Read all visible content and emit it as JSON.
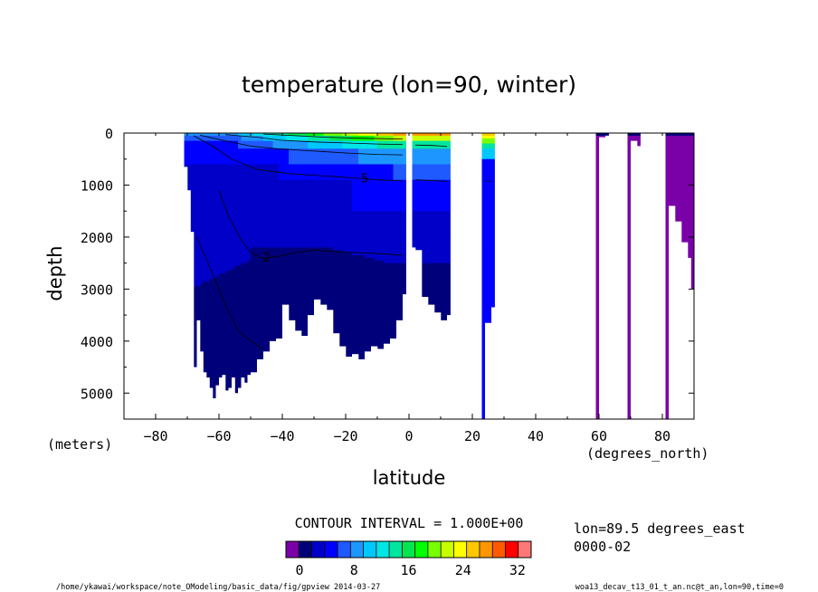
{
  "chart_data": {
    "type": "heatmap",
    "title": "temperature (lon=90, winter)",
    "xlabel": "latitude",
    "ylabel": "depth",
    "x_unit": "(degrees_north)",
    "y_unit": "(meters)",
    "xlim": [
      -90,
      90
    ],
    "ylim": [
      5500,
      0
    ],
    "x_ticks": [
      -80,
      -60,
      -40,
      -20,
      0,
      20,
      40,
      60,
      80
    ],
    "y_ticks": [
      0,
      1000,
      2000,
      3000,
      4000,
      5000
    ],
    "y_reversed": true,
    "contour_interval_text": "CONTOUR INTERVAL = 1.000E+00",
    "contour_labels": [
      {
        "text": "5",
        "x": -14,
        "y": 880
      },
      {
        "text": "2",
        "x": -45,
        "y": 2400
      }
    ],
    "colorbar": {
      "min": -2,
      "max": 32,
      "step": 2,
      "tick_labels": [
        "0",
        "8",
        "16",
        "24",
        "32"
      ],
      "tick_values": [
        0,
        8,
        16,
        24,
        32
      ],
      "colors": [
        "#7a00a8",
        "#00007a",
        "#0000c8",
        "#0000ff",
        "#1e5aff",
        "#1e96ff",
        "#00c8ff",
        "#00e6e6",
        "#00e6a0",
        "#00e650",
        "#00ff00",
        "#78ff00",
        "#c8ff00",
        "#ffff00",
        "#ffc800",
        "#ff9600",
        "#ff5a00",
        "#ff0000",
        "#ff7878"
      ]
    },
    "profiles": [
      {
        "lat": -71,
        "bottom": 650
      },
      {
        "lat": -70,
        "bottom": 1100
      },
      {
        "lat": -69,
        "bottom": 1900
      },
      {
        "lat": -68,
        "bottom": 4500
      },
      {
        "lat": -67,
        "bottom": 3600
      },
      {
        "lat": -66,
        "bottom": 4200
      },
      {
        "lat": -65,
        "bottom": 4600
      },
      {
        "lat": -64,
        "bottom": 4700
      },
      {
        "lat": -63,
        "bottom": 4900
      },
      {
        "lat": -62,
        "bottom": 5100
      },
      {
        "lat": -61,
        "bottom": 4850
      },
      {
        "lat": -60,
        "bottom": 4700
      },
      {
        "lat": -59,
        "bottom": 4650
      },
      {
        "lat": -58,
        "bottom": 4950
      },
      {
        "lat": -57,
        "bottom": 4900
      },
      {
        "lat": -56,
        "bottom": 4700
      },
      {
        "lat": -55,
        "bottom": 5000
      },
      {
        "lat": -54,
        "bottom": 4900
      },
      {
        "lat": -53,
        "bottom": 4700
      },
      {
        "lat": -52,
        "bottom": 4800
      },
      {
        "lat": -51,
        "bottom": 4650
      },
      {
        "lat": -50,
        "bottom": 4600
      },
      {
        "lat": -48,
        "bottom": 4350
      },
      {
        "lat": -46,
        "bottom": 4200
      },
      {
        "lat": -44,
        "bottom": 4000
      },
      {
        "lat": -42,
        "bottom": 3950
      },
      {
        "lat": -40,
        "bottom": 3300
      },
      {
        "lat": -38,
        "bottom": 3600
      },
      {
        "lat": -36,
        "bottom": 3800
      },
      {
        "lat": -34,
        "bottom": 3900
      },
      {
        "lat": -32,
        "bottom": 3500
      },
      {
        "lat": -30,
        "bottom": 3200
      },
      {
        "lat": -28,
        "bottom": 3300
      },
      {
        "lat": -26,
        "bottom": 3400
      },
      {
        "lat": -24,
        "bottom": 3850
      },
      {
        "lat": -22,
        "bottom": 4100
      },
      {
        "lat": -20,
        "bottom": 4300
      },
      {
        "lat": -18,
        "bottom": 4250
      },
      {
        "lat": -16,
        "bottom": 4350
      },
      {
        "lat": -14,
        "bottom": 4200
      },
      {
        "lat": -12,
        "bottom": 4100
      },
      {
        "lat": -10,
        "bottom": 4150
      },
      {
        "lat": -8,
        "bottom": 4050
      },
      {
        "lat": -6,
        "bottom": 3950
      },
      {
        "lat": -4,
        "bottom": 3600
      },
      {
        "lat": -2,
        "bottom": 3100
      },
      {
        "lat": 1,
        "bottom": 2200
      },
      {
        "lat": 2,
        "bottom": 2250
      },
      {
        "lat": 4,
        "bottom": 3150
      },
      {
        "lat": 6,
        "bottom": 3300
      },
      {
        "lat": 8,
        "bottom": 3450
      },
      {
        "lat": 10,
        "bottom": 3600
      },
      {
        "lat": 12,
        "bottom": 3500
      },
      {
        "lat": 24,
        "bottom": 3650
      },
      {
        "lat": 26,
        "bottom": 3350
      },
      {
        "lat": 60,
        "bottom": 80
      },
      {
        "lat": 62,
        "bottom": 50
      },
      {
        "lat": 70,
        "bottom": 150
      },
      {
        "lat": 72,
        "bottom": 250
      },
      {
        "lat": 82,
        "bottom": 1400
      },
      {
        "lat": 84,
        "bottom": 1700
      },
      {
        "lat": 86,
        "bottom": 2100
      },
      {
        "lat": 88,
        "bottom": 2400
      },
      {
        "lat": 89,
        "bottom": 3000
      }
    ],
    "water_columns": [
      {
        "lat": [
          -71,
          -1
        ],
        "profile": "south"
      },
      {
        "lat": [
          1,
          13
        ],
        "profile": "equator"
      },
      {
        "lat": [
          23,
          27
        ],
        "profile": "bay"
      },
      {
        "lat": [
          59,
          63
        ],
        "profile": "polar"
      },
      {
        "lat": [
          69,
          73
        ],
        "profile": "polar"
      },
      {
        "lat": [
          81,
          90
        ],
        "profile": "polar"
      }
    ]
  },
  "annotations": {
    "lon": "lon=89.5 degrees_east",
    "time": "0000-02",
    "footer_left": "/home/ykawai/workspace/note_OModeling/basic_data/fig/gpview  2014-03-27",
    "footer_right": "woa13_decav_t13_01_t_an.nc@t_an,lon=90,time=0"
  },
  "colors": {
    "axis": "#000000",
    "background": "#ffffff",
    "contour": "#000000"
  }
}
